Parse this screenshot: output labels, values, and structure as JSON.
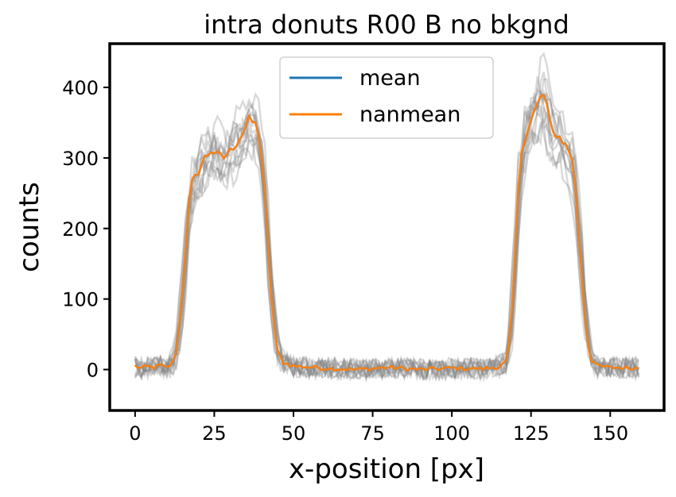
{
  "chart_data": {
    "type": "line",
    "title": "intra donuts R00 B no bkgnd",
    "xlabel": "x-position [px]",
    "ylabel": "counts",
    "xlim": [
      -8,
      167
    ],
    "ylim": [
      -58,
      462
    ],
    "xticks": [
      0,
      25,
      50,
      75,
      100,
      125,
      150
    ],
    "yticks": [
      0,
      100,
      200,
      300,
      400
    ],
    "legend": {
      "position": "top-center"
    },
    "series": [
      {
        "name": "mean",
        "color": "#1f77b4"
      },
      {
        "name": "nanmean",
        "color": "#ff7f0e"
      }
    ],
    "background_traces": {
      "color": "#808080",
      "opacity": 0.3,
      "count": 12
    },
    "profile_points": [
      [
        0,
        5
      ],
      [
        2,
        2
      ],
      [
        4,
        4
      ],
      [
        6,
        3
      ],
      [
        8,
        6
      ],
      [
        10,
        2
      ],
      [
        12,
        10
      ],
      [
        13,
        25
      ],
      [
        14,
        60
      ],
      [
        15,
        110
      ],
      [
        16,
        170
      ],
      [
        17,
        230
      ],
      [
        18,
        265
      ],
      [
        20,
        280
      ],
      [
        22,
        300
      ],
      [
        24,
        310
      ],
      [
        26,
        305
      ],
      [
        28,
        300
      ],
      [
        30,
        310
      ],
      [
        32,
        320
      ],
      [
        34,
        335
      ],
      [
        36,
        355
      ],
      [
        38,
        348
      ],
      [
        39,
        335
      ],
      [
        40,
        300
      ],
      [
        41,
        250
      ],
      [
        42,
        180
      ],
      [
        43,
        110
      ],
      [
        44,
        60
      ],
      [
        45,
        25
      ],
      [
        47,
        10
      ],
      [
        50,
        5
      ],
      [
        60,
        2
      ],
      [
        70,
        0
      ],
      [
        80,
        3
      ],
      [
        90,
        0
      ],
      [
        100,
        2
      ],
      [
        110,
        1
      ],
      [
        115,
        4
      ],
      [
        117,
        10
      ],
      [
        118,
        30
      ],
      [
        119,
        80
      ],
      [
        120,
        160
      ],
      [
        121,
        250
      ],
      [
        122,
        310
      ],
      [
        124,
        340
      ],
      [
        126,
        365
      ],
      [
        128,
        385
      ],
      [
        129,
        390
      ],
      [
        130,
        375
      ],
      [
        131,
        350
      ],
      [
        132,
        335
      ],
      [
        134,
        330
      ],
      [
        136,
        318
      ],
      [
        138,
        300
      ],
      [
        139,
        260
      ],
      [
        140,
        200
      ],
      [
        141,
        140
      ],
      [
        142,
        80
      ],
      [
        143,
        40
      ],
      [
        144,
        15
      ],
      [
        146,
        5
      ],
      [
        150,
        3
      ],
      [
        159,
        2
      ]
    ],
    "x_max": 159
  }
}
